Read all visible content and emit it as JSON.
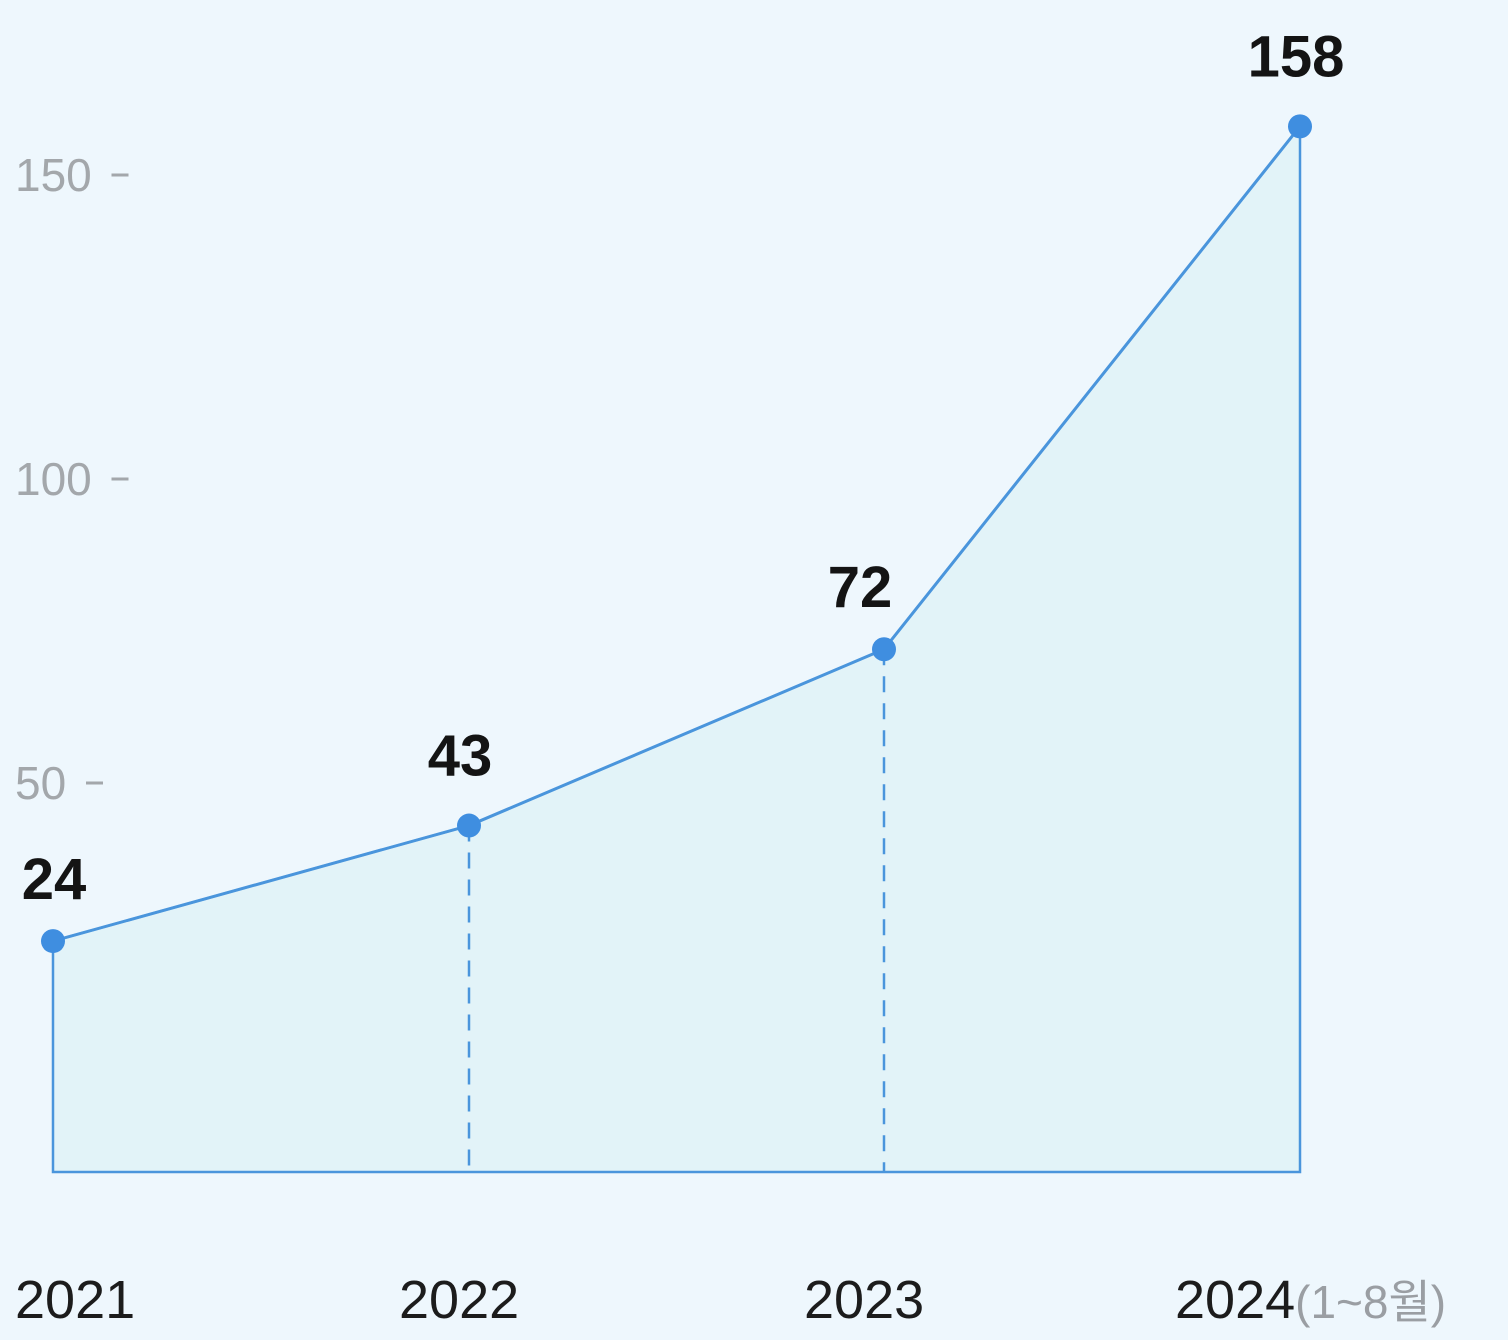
{
  "chart_data": {
    "type": "area",
    "categories": [
      "2021",
      "2022",
      "2023",
      "2024"
    ],
    "category_notes": [
      "",
      "",
      "",
      "(1~8월)"
    ],
    "values": [
      24,
      43,
      72,
      158
    ],
    "data_labels": [
      "24",
      "43",
      "72",
      "158"
    ],
    "yticks": [
      50,
      100,
      150
    ],
    "ytick_labels": [
      "50",
      "100",
      "150"
    ],
    "ylim": [
      8,
      168
    ],
    "grid": false,
    "legend": "none",
    "colors": {
      "background": "#eef7fd",
      "line": "#4a95dc",
      "fill": "#e2f3f8",
      "marker": "#3f8ee0"
    }
  }
}
